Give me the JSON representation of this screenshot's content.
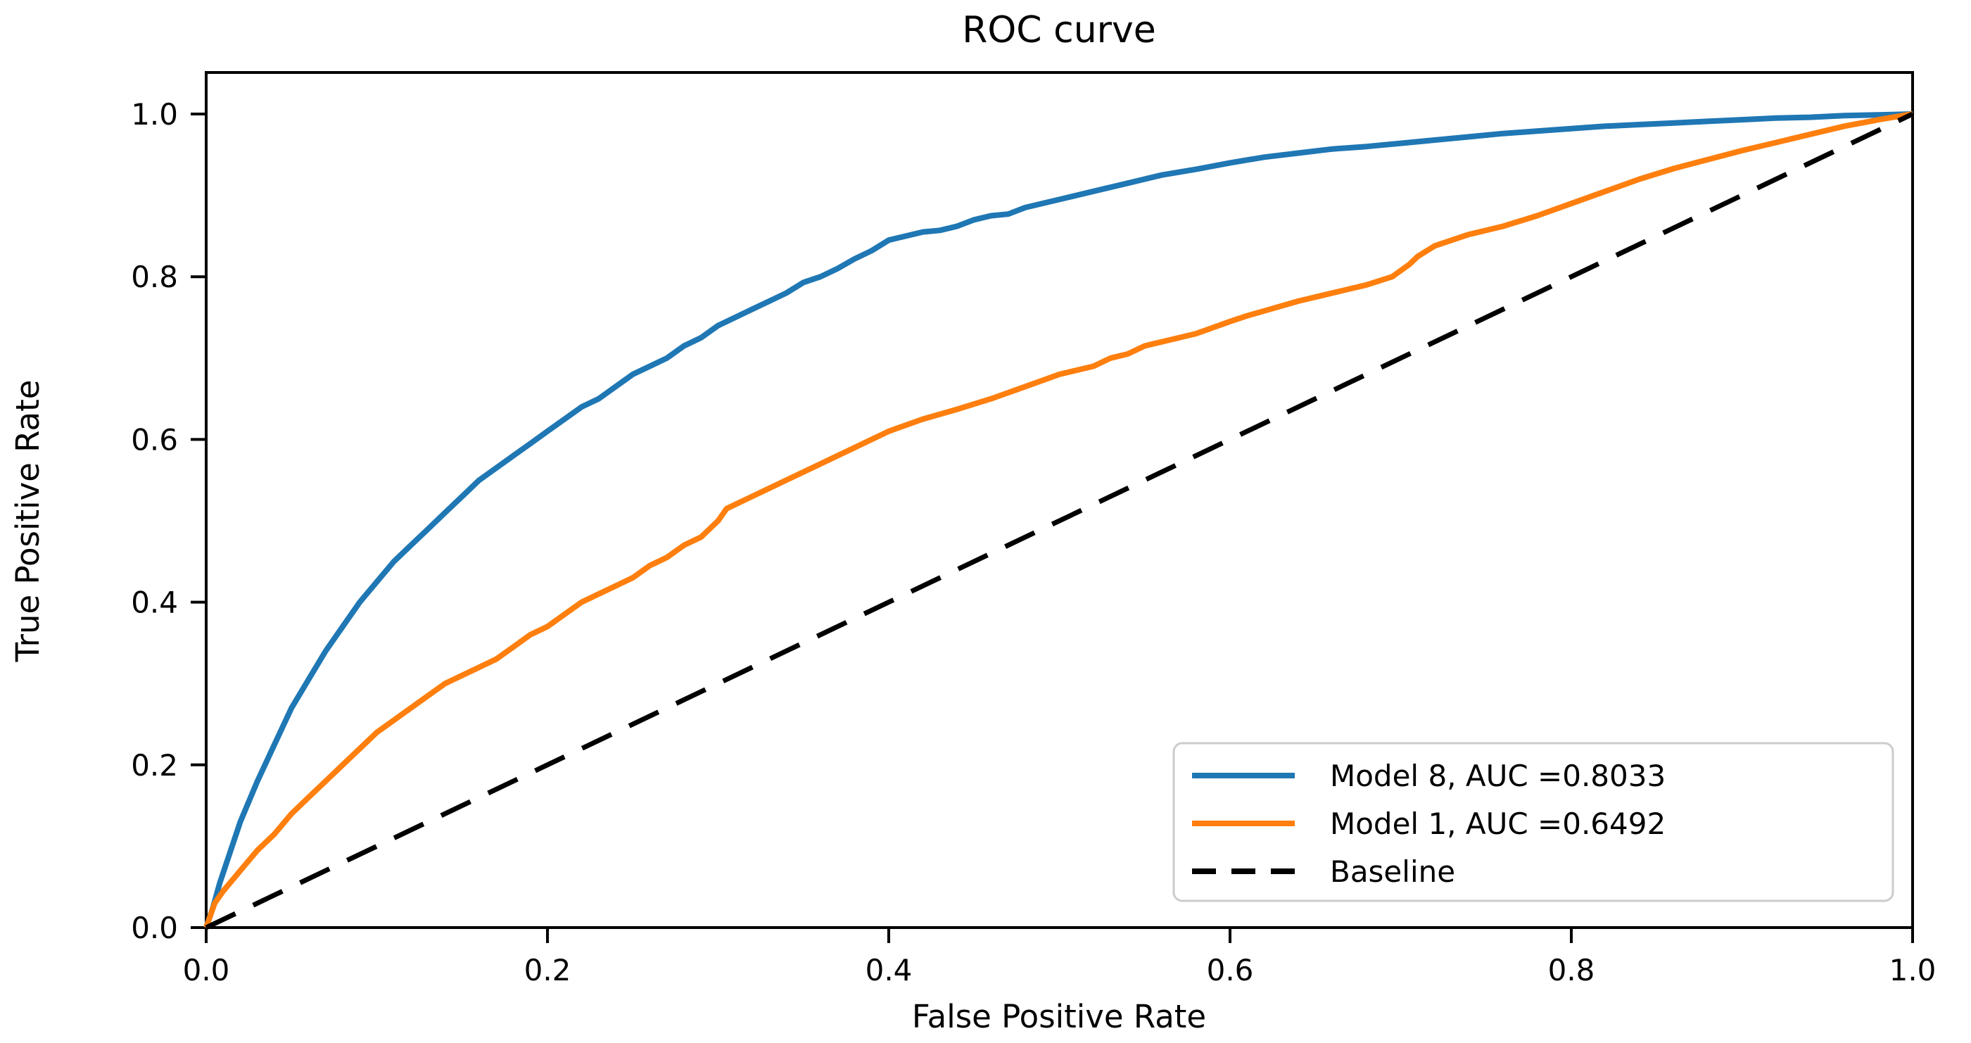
{
  "figure": {
    "background_color": "#ffffff",
    "axis_color": "#000000",
    "legend_border_color": "#cccccc"
  },
  "chart_data": {
    "type": "line",
    "title": "ROC curve",
    "xlabel": "False Positive Rate",
    "ylabel": "True Positive Rate",
    "xlim": [
      0.0,
      1.0
    ],
    "ylim": [
      0.0,
      1.05
    ],
    "grid": false,
    "legend_position": "lower right",
    "x_ticks": [
      {
        "value": 0.0,
        "label": "0.0"
      },
      {
        "value": 0.2,
        "label": "0.2"
      },
      {
        "value": 0.4,
        "label": "0.4"
      },
      {
        "value": 0.6,
        "label": "0.6"
      },
      {
        "value": 0.8,
        "label": "0.8"
      },
      {
        "value": 1.0,
        "label": "1.0"
      }
    ],
    "y_ticks": [
      {
        "value": 0.0,
        "label": "0.0"
      },
      {
        "value": 0.2,
        "label": "0.2"
      },
      {
        "value": 0.4,
        "label": "0.4"
      },
      {
        "value": 0.6,
        "label": "0.6"
      },
      {
        "value": 0.8,
        "label": "0.8"
      },
      {
        "value": 1.0,
        "label": "1.0"
      }
    ],
    "series": [
      {
        "name": "Model 8",
        "auc": 0.8033,
        "legend_label": "Model 8, AUC =0.8033",
        "color": "#1f77b4",
        "style": "solid",
        "line_width": 8,
        "points": [
          [
            0.0,
            0.0
          ],
          [
            0.004,
            0.025
          ],
          [
            0.008,
            0.055
          ],
          [
            0.012,
            0.08
          ],
          [
            0.016,
            0.105
          ],
          [
            0.02,
            0.13
          ],
          [
            0.03,
            0.18
          ],
          [
            0.04,
            0.225
          ],
          [
            0.05,
            0.27
          ],
          [
            0.06,
            0.305
          ],
          [
            0.07,
            0.34
          ],
          [
            0.08,
            0.37
          ],
          [
            0.09,
            0.4
          ],
          [
            0.1,
            0.425
          ],
          [
            0.11,
            0.45
          ],
          [
            0.12,
            0.47
          ],
          [
            0.13,
            0.49
          ],
          [
            0.14,
            0.51
          ],
          [
            0.15,
            0.53
          ],
          [
            0.16,
            0.55
          ],
          [
            0.17,
            0.565
          ],
          [
            0.18,
            0.58
          ],
          [
            0.19,
            0.595
          ],
          [
            0.2,
            0.61
          ],
          [
            0.21,
            0.625
          ],
          [
            0.22,
            0.64
          ],
          [
            0.23,
            0.65
          ],
          [
            0.24,
            0.665
          ],
          [
            0.25,
            0.68
          ],
          [
            0.26,
            0.69
          ],
          [
            0.27,
            0.7
          ],
          [
            0.28,
            0.715
          ],
          [
            0.29,
            0.725
          ],
          [
            0.3,
            0.74
          ],
          [
            0.31,
            0.75
          ],
          [
            0.32,
            0.76
          ],
          [
            0.33,
            0.77
          ],
          [
            0.34,
            0.78
          ],
          [
            0.35,
            0.793
          ],
          [
            0.36,
            0.8
          ],
          [
            0.37,
            0.81
          ],
          [
            0.38,
            0.822
          ],
          [
            0.39,
            0.832
          ],
          [
            0.4,
            0.845
          ],
          [
            0.41,
            0.85
          ],
          [
            0.42,
            0.855
          ],
          [
            0.43,
            0.857
          ],
          [
            0.44,
            0.862
          ],
          [
            0.45,
            0.87
          ],
          [
            0.46,
            0.875
          ],
          [
            0.47,
            0.877
          ],
          [
            0.48,
            0.885
          ],
          [
            0.5,
            0.895
          ],
          [
            0.52,
            0.905
          ],
          [
            0.54,
            0.915
          ],
          [
            0.56,
            0.925
          ],
          [
            0.58,
            0.932
          ],
          [
            0.6,
            0.94
          ],
          [
            0.62,
            0.947
          ],
          [
            0.64,
            0.952
          ],
          [
            0.66,
            0.957
          ],
          [
            0.68,
            0.96
          ],
          [
            0.7,
            0.964
          ],
          [
            0.72,
            0.968
          ],
          [
            0.74,
            0.972
          ],
          [
            0.76,
            0.976
          ],
          [
            0.78,
            0.979
          ],
          [
            0.8,
            0.982
          ],
          [
            0.82,
            0.985
          ],
          [
            0.84,
            0.987
          ],
          [
            0.86,
            0.989
          ],
          [
            0.88,
            0.991
          ],
          [
            0.9,
            0.993
          ],
          [
            0.92,
            0.995
          ],
          [
            0.94,
            0.996
          ],
          [
            0.96,
            0.998
          ],
          [
            0.98,
            0.999
          ],
          [
            1.0,
            1.0
          ]
        ]
      },
      {
        "name": "Model 1",
        "auc": 0.6492,
        "legend_label": "Model 1, AUC =0.6492",
        "color": "#ff7f0e",
        "style": "solid",
        "line_width": 8,
        "points": [
          [
            0.0,
            0.0
          ],
          [
            0.005,
            0.03
          ],
          [
            0.01,
            0.045
          ],
          [
            0.02,
            0.07
          ],
          [
            0.03,
            0.095
          ],
          [
            0.04,
            0.115
          ],
          [
            0.05,
            0.14
          ],
          [
            0.06,
            0.16
          ],
          [
            0.07,
            0.18
          ],
          [
            0.08,
            0.2
          ],
          [
            0.09,
            0.22
          ],
          [
            0.1,
            0.24
          ],
          [
            0.11,
            0.255
          ],
          [
            0.12,
            0.27
          ],
          [
            0.13,
            0.285
          ],
          [
            0.14,
            0.3
          ],
          [
            0.15,
            0.31
          ],
          [
            0.16,
            0.32
          ],
          [
            0.17,
            0.33
          ],
          [
            0.18,
            0.345
          ],
          [
            0.19,
            0.36
          ],
          [
            0.2,
            0.37
          ],
          [
            0.21,
            0.385
          ],
          [
            0.22,
            0.4
          ],
          [
            0.23,
            0.41
          ],
          [
            0.24,
            0.42
          ],
          [
            0.25,
            0.43
          ],
          [
            0.26,
            0.445
          ],
          [
            0.27,
            0.455
          ],
          [
            0.28,
            0.47
          ],
          [
            0.29,
            0.48
          ],
          [
            0.3,
            0.5
          ],
          [
            0.305,
            0.515
          ],
          [
            0.31,
            0.52
          ],
          [
            0.32,
            0.53
          ],
          [
            0.33,
            0.54
          ],
          [
            0.34,
            0.55
          ],
          [
            0.35,
            0.56
          ],
          [
            0.36,
            0.57
          ],
          [
            0.37,
            0.58
          ],
          [
            0.38,
            0.59
          ],
          [
            0.39,
            0.6
          ],
          [
            0.4,
            0.61
          ],
          [
            0.42,
            0.625
          ],
          [
            0.44,
            0.637
          ],
          [
            0.46,
            0.65
          ],
          [
            0.48,
            0.665
          ],
          [
            0.5,
            0.68
          ],
          [
            0.52,
            0.69
          ],
          [
            0.53,
            0.7
          ],
          [
            0.54,
            0.705
          ],
          [
            0.55,
            0.715
          ],
          [
            0.56,
            0.72
          ],
          [
            0.58,
            0.73
          ],
          [
            0.6,
            0.745
          ],
          [
            0.61,
            0.752
          ],
          [
            0.62,
            0.758
          ],
          [
            0.64,
            0.77
          ],
          [
            0.66,
            0.78
          ],
          [
            0.68,
            0.79
          ],
          [
            0.695,
            0.8
          ],
          [
            0.705,
            0.815
          ],
          [
            0.71,
            0.825
          ],
          [
            0.72,
            0.838
          ],
          [
            0.74,
            0.852
          ],
          [
            0.76,
            0.862
          ],
          [
            0.78,
            0.875
          ],
          [
            0.8,
            0.89
          ],
          [
            0.82,
            0.905
          ],
          [
            0.84,
            0.92
          ],
          [
            0.86,
            0.933
          ],
          [
            0.88,
            0.944
          ],
          [
            0.9,
            0.955
          ],
          [
            0.92,
            0.965
          ],
          [
            0.94,
            0.975
          ],
          [
            0.96,
            0.985
          ],
          [
            0.98,
            0.993
          ],
          [
            1.0,
            1.0
          ]
        ]
      },
      {
        "name": "Baseline",
        "legend_label": "Baseline",
        "color": "#000000",
        "style": "dashed",
        "line_width": 7,
        "points": [
          [
            0.0,
            0.0
          ],
          [
            1.0,
            1.0
          ]
        ]
      }
    ]
  }
}
